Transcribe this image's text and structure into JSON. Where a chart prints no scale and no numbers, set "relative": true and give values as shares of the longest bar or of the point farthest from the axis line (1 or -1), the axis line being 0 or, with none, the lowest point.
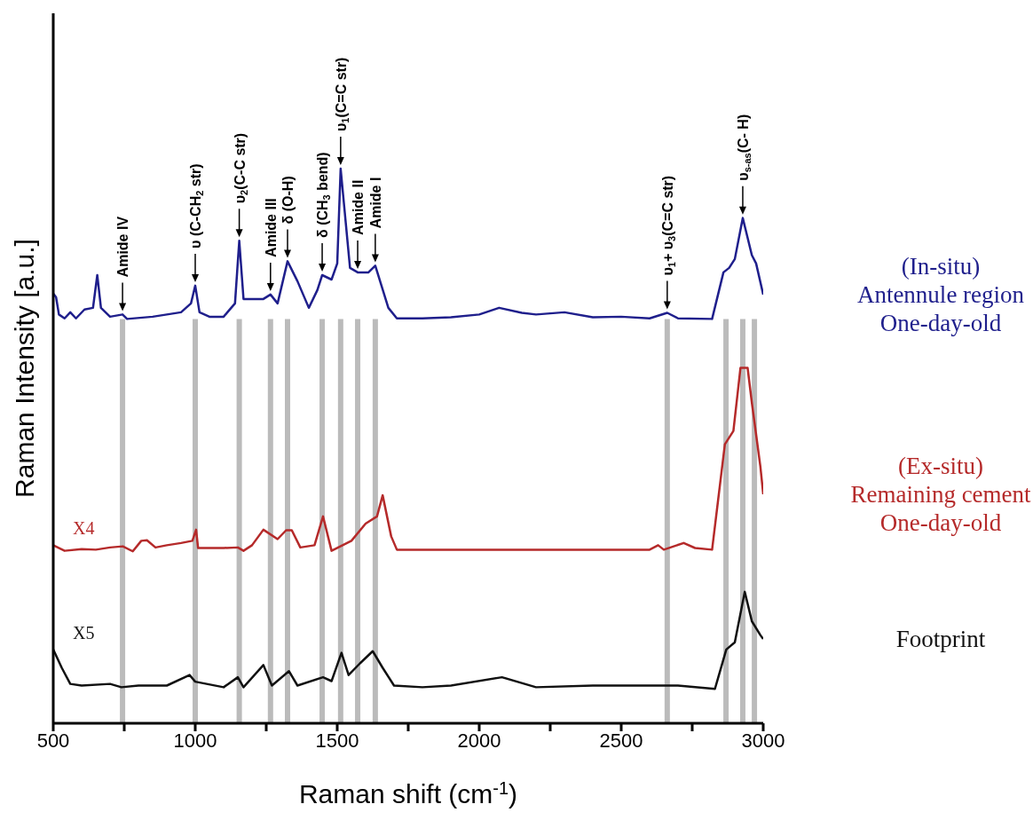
{
  "chart_data": {
    "type": "line",
    "relative": true,
    "xlabel": "Raman shift (cm$^{-1}$)",
    "ylabel": "Raman Intensity [a.u.]",
    "marker": "none",
    "xlim": [
      500,
      3000
    ],
    "xticks": [
      500,
      {
        "value": 750,
        "label": null
      },
      1000,
      {
        "value": 1250,
        "label": null
      },
      1500,
      {
        "value": 1750,
        "label": null
      },
      2000,
      {
        "value": 2250,
        "label": null
      },
      2500,
      {
        "value": 2750,
        "label": null
      },
      3000
    ],
    "series": [
      {
        "name": "(In-situ) Antennule region One-day-old",
        "color": "#1f1f8c",
        "x": [
          500,
          510,
          520,
          540,
          560,
          580,
          610,
          640,
          655,
          668,
          700,
          744,
          760,
          850,
          950,
          985,
          1000,
          1015,
          1050,
          1100,
          1140,
          1155,
          1170,
          1200,
          1240,
          1265,
          1290,
          1325,
          1360,
          1400,
          1430,
          1447,
          1480,
          1500,
          1512,
          1545,
          1572,
          1610,
          1634,
          1680,
          1710,
          1800,
          1900,
          2000,
          2070,
          2150,
          2200,
          2300,
          2400,
          2500,
          2600,
          2662,
          2700,
          2820,
          2860,
          2880,
          2900,
          2928,
          2960,
          2975,
          3000
        ],
        "values": [
          0.775,
          0.768,
          0.737,
          0.73,
          0.741,
          0.73,
          0.746,
          0.749,
          0.808,
          0.749,
          0.733,
          0.737,
          0.729,
          0.733,
          0.741,
          0.757,
          0.789,
          0.741,
          0.733,
          0.733,
          0.757,
          0.87,
          0.765,
          0.765,
          0.765,
          0.773,
          0.757,
          0.833,
          0.797,
          0.749,
          0.781,
          0.808,
          0.8,
          0.829,
          1.0,
          0.821,
          0.813,
          0.813,
          0.825,
          0.749,
          0.73,
          0.73,
          0.732,
          0.737,
          0.749,
          0.74,
          0.737,
          0.741,
          0.732,
          0.733,
          0.73,
          0.74,
          0.73,
          0.729,
          0.813,
          0.821,
          0.837,
          0.911,
          0.844,
          0.829,
          0.773
        ]
      },
      {
        "name": "(Ex-situ) Remaining cement One-day-old",
        "color": "#b52a2a",
        "x": [
          500,
          540,
          600,
          650,
          700,
          745,
          780,
          810,
          830,
          860,
          900,
          950,
          990,
          1003,
          1010,
          1100,
          1150,
          1170,
          1200,
          1240,
          1290,
          1320,
          1340,
          1370,
          1420,
          1450,
          1480,
          1550,
          1600,
          1640,
          1660,
          1690,
          1710,
          1800,
          2000,
          2200,
          2400,
          2600,
          2630,
          2650,
          2720,
          2760,
          2820,
          2865,
          2895,
          2920,
          2945,
          2960,
          2990,
          3000
        ],
        "values": [
          0.321,
          0.311,
          0.314,
          0.313,
          0.317,
          0.319,
          0.31,
          0.329,
          0.33,
          0.317,
          0.321,
          0.325,
          0.329,
          0.349,
          0.316,
          0.316,
          0.317,
          0.311,
          0.321,
          0.349,
          0.332,
          0.348,
          0.348,
          0.317,
          0.321,
          0.373,
          0.311,
          0.329,
          0.36,
          0.373,
          0.411,
          0.337,
          0.313,
          0.313,
          0.313,
          0.313,
          0.313,
          0.313,
          0.321,
          0.313,
          0.325,
          0.316,
          0.313,
          0.503,
          0.527,
          0.641,
          0.641,
          0.578,
          0.463,
          0.413
        ]
      },
      {
        "name": "Footprint",
        "color": "#111111",
        "x": [
          500,
          530,
          560,
          600,
          700,
          740,
          800,
          900,
          980,
          1000,
          1100,
          1150,
          1170,
          1240,
          1270,
          1330,
          1360,
          1450,
          1480,
          1515,
          1540,
          1580,
          1625,
          1660,
          1700,
          1800,
          1900,
          2080,
          2200,
          2400,
          2600,
          2700,
          2830,
          2870,
          2900,
          2935,
          2960,
          2990,
          3000
        ],
        "values": [
          0.133,
          0.1,
          0.071,
          0.068,
          0.071,
          0.065,
          0.068,
          0.068,
          0.087,
          0.075,
          0.065,
          0.083,
          0.065,
          0.105,
          0.068,
          0.094,
          0.068,
          0.083,
          0.076,
          0.127,
          0.087,
          0.108,
          0.13,
          0.1,
          0.068,
          0.065,
          0.068,
          0.083,
          0.065,
          0.068,
          0.068,
          0.068,
          0.062,
          0.133,
          0.146,
          0.237,
          0.184,
          0.159,
          0.152
        ]
      }
    ],
    "ref_lines": [
      {
        "axis": "x",
        "value": 744,
        "color": "#bbbbbb"
      },
      {
        "axis": "x",
        "value": 1000,
        "color": "#bbbbbb"
      },
      {
        "axis": "x",
        "value": 1155,
        "color": "#bbbbbb"
      },
      {
        "axis": "x",
        "value": 1265,
        "color": "#bbbbbb"
      },
      {
        "axis": "x",
        "value": 1325,
        "color": "#bbbbbb"
      },
      {
        "axis": "x",
        "value": 1447,
        "color": "#bbbbbb"
      },
      {
        "axis": "x",
        "value": 1512,
        "color": "#bbbbbb"
      },
      {
        "axis": "x",
        "value": 1572,
        "color": "#bbbbbb"
      },
      {
        "axis": "x",
        "value": 1634,
        "color": "#bbbbbb"
      },
      {
        "axis": "x",
        "value": 2662,
        "color": "#bbbbbb"
      },
      {
        "axis": "x",
        "value": 2869,
        "color": "#bbbbbb"
      },
      {
        "axis": "x",
        "value": 2928,
        "color": "#bbbbbb"
      },
      {
        "axis": "x",
        "value": 2969,
        "color": "#bbbbbb"
      }
    ],
    "annotations": [
      "X4",
      "X5",
      {
        "text": "Amide IV",
        "x": 744,
        "y": 0.737
      },
      {
        "text": "υ (C-CH$_{2}$ str)",
        "x": 1000,
        "y": 0.789
      },
      {
        "text": "υ$_{2}$(C-C str)",
        "x": 1155,
        "y": 0.87
      },
      {
        "text": "Amide III",
        "x": 1265,
        "y": 0.773
      },
      {
        "text": "δ (O-H)",
        "x": 1325,
        "y": 0.833
      },
      {
        "text": "δ (CH$_{3}$ bend)",
        "x": 1447,
        "y": 0.808
      },
      {
        "text": "υ$_{1}$(C=C str)",
        "x": 1512,
        "y": 1.0
      },
      {
        "text": "Amide II",
        "x": 1572,
        "y": 0.813
      },
      {
        "text": "Amide I",
        "x": 1634,
        "y": 0.825
      },
      {
        "text": "υ$_{1}$+ υ$_{3}$(C=C str)",
        "x": 2662,
        "y": 0.74
      },
      {
        "text": "υ$_{s-as}$(C- H)",
        "x": 2928,
        "y": 0.911
      }
    ]
  }
}
